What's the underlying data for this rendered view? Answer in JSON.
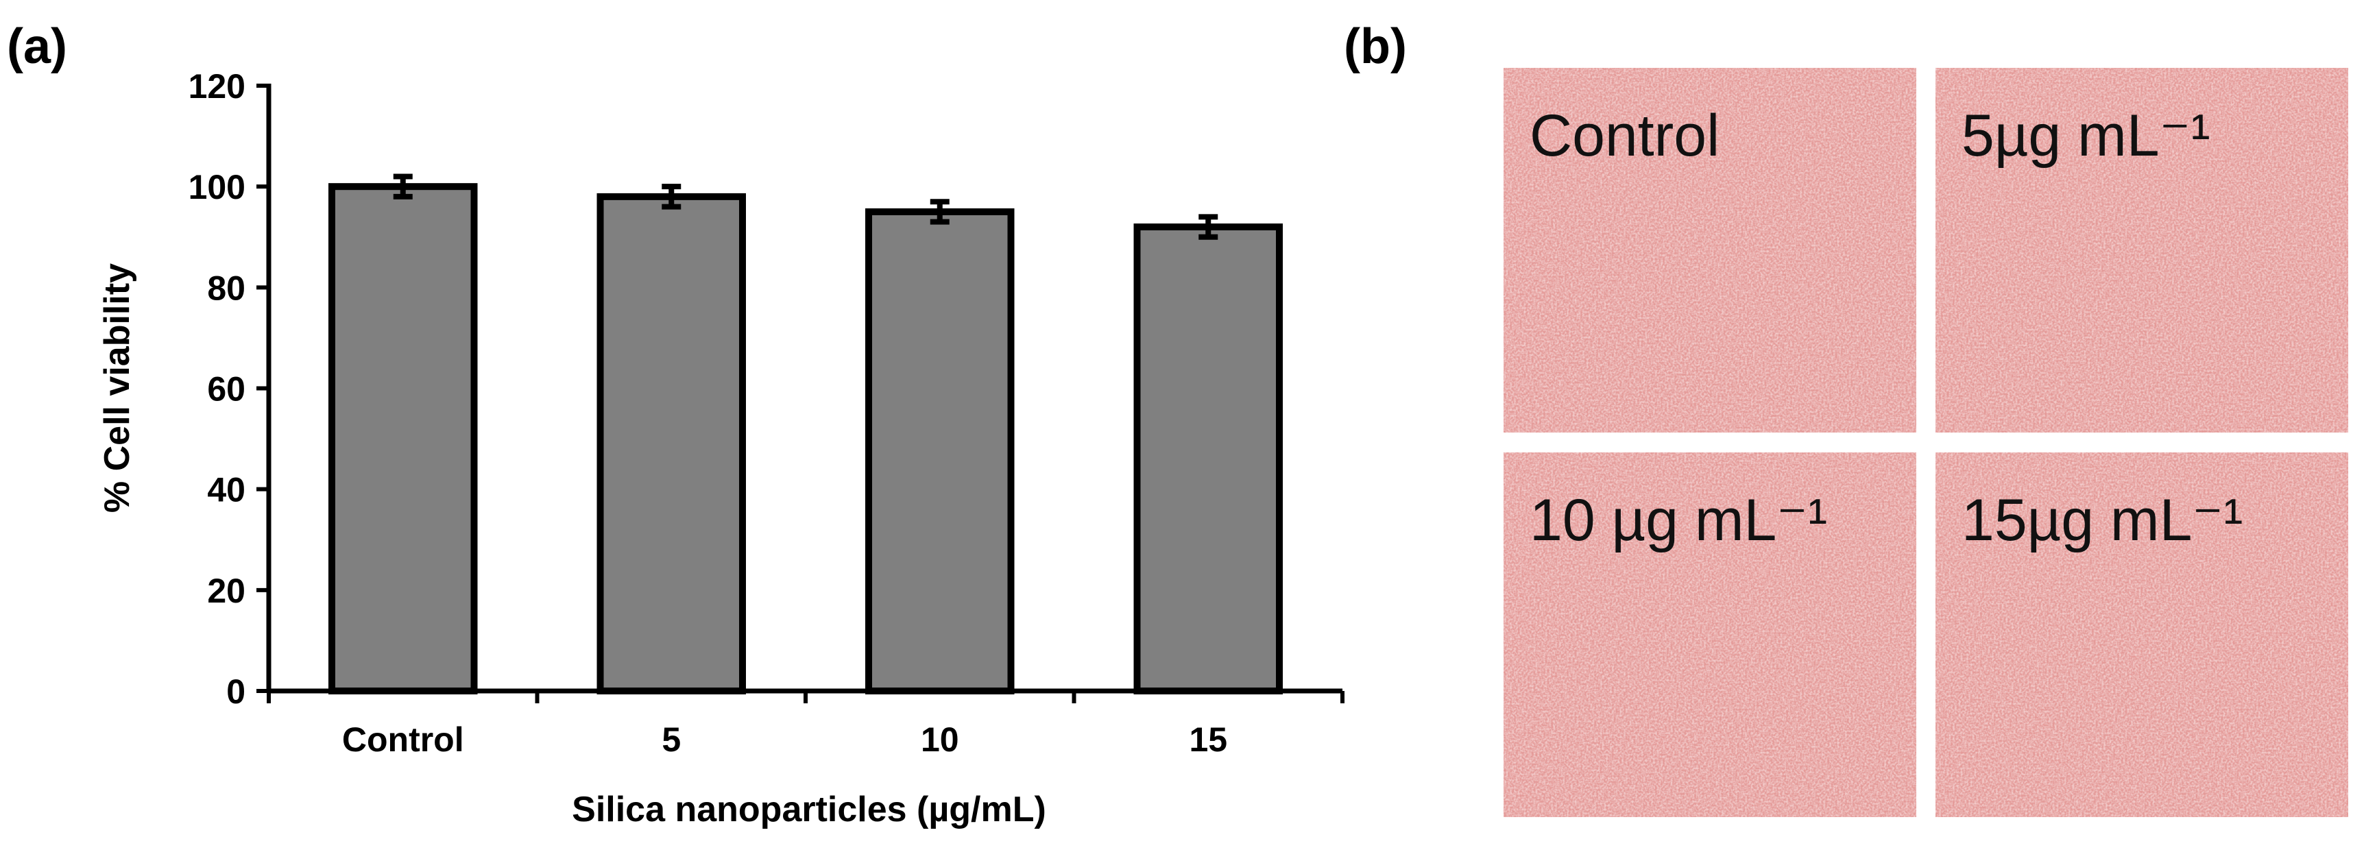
{
  "chart_data": {
    "type": "bar",
    "panel_label": "(a)",
    "x_label": "Silica nanoparticles (µg/mL)",
    "y_label": "% Cell viability",
    "categories": [
      "Control",
      "5",
      "10",
      "15"
    ],
    "values": [
      100,
      98,
      95,
      92
    ],
    "errors": [
      2,
      2,
      2,
      2
    ],
    "color": "#808080",
    "ylim": [
      0,
      120
    ],
    "yticks": [
      0,
      20,
      40,
      60,
      80,
      100,
      120
    ]
  },
  "micrographs": {
    "panel_label": "(b)",
    "images": [
      {
        "label": "Control"
      },
      {
        "label": "5µg mL⁻¹"
      },
      {
        "label": "10 µg mL⁻¹"
      },
      {
        "label": "15µg mL⁻¹"
      }
    ]
  }
}
